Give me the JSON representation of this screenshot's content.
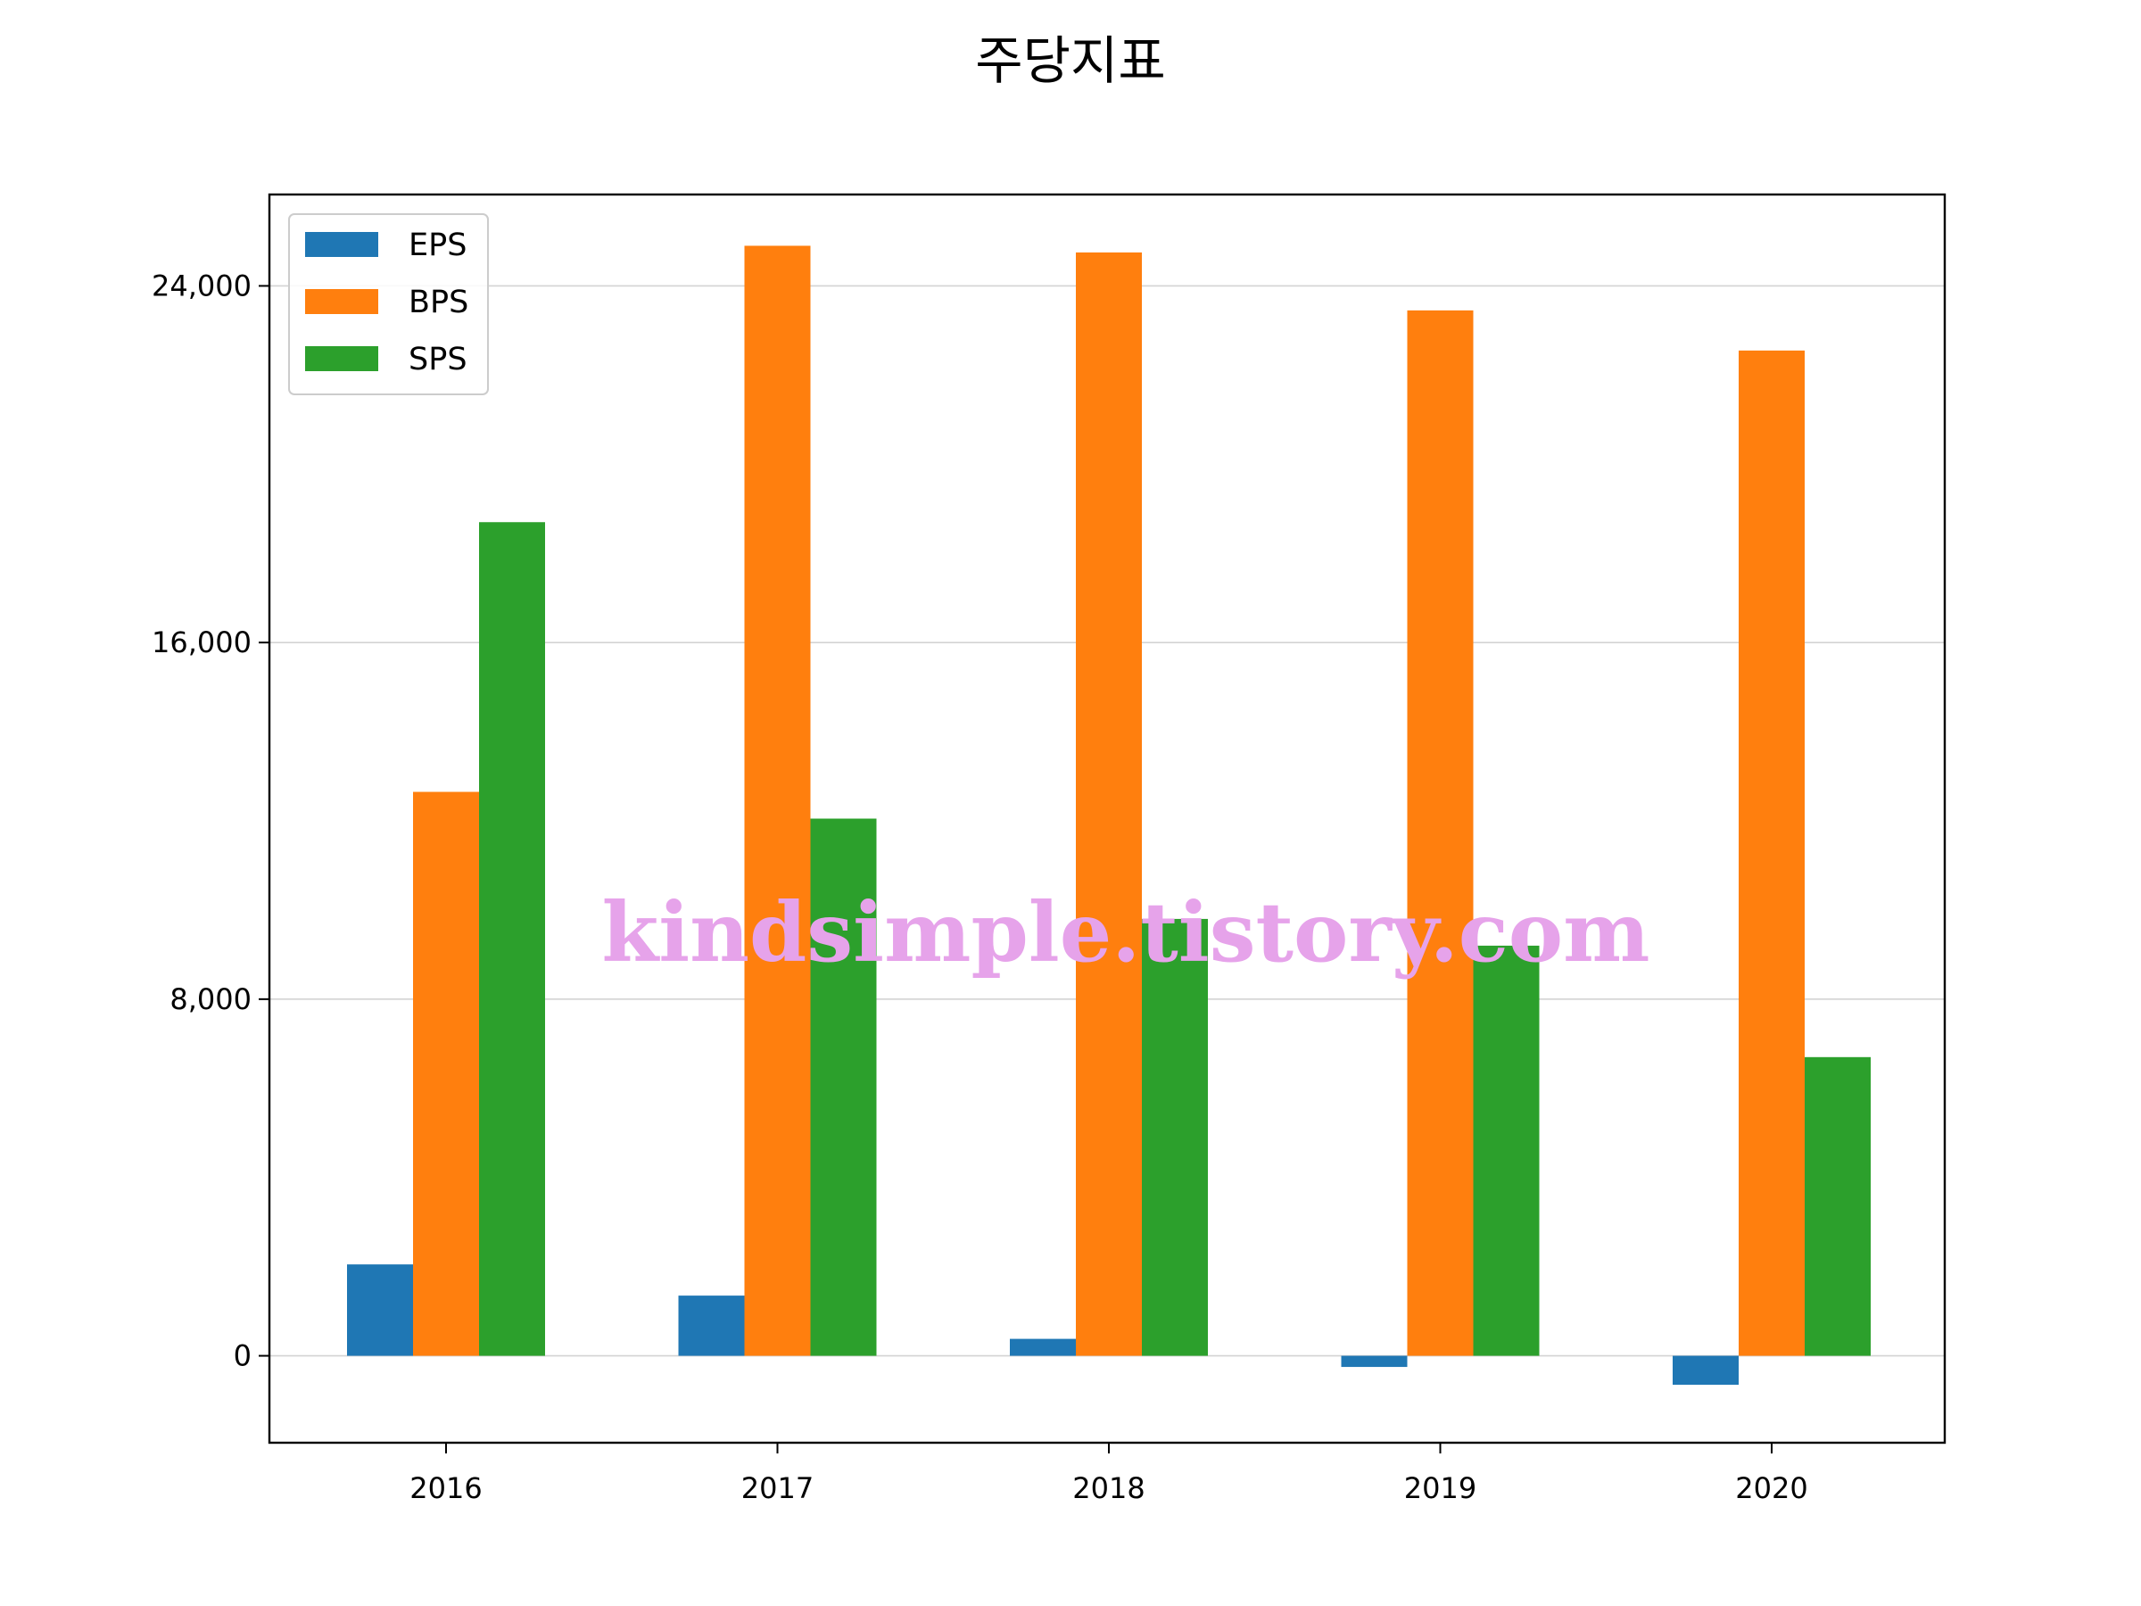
{
  "chart_data": {
    "type": "bar",
    "title": "주당지표",
    "xlabel": "",
    "ylabel": "",
    "categories": [
      "2016",
      "2017",
      "2018",
      "2019",
      "2020"
    ],
    "series": [
      {
        "name": "EPS",
        "color": "#1f77b4",
        "values": [
          2050,
          1350,
          380,
          -250,
          -650
        ]
      },
      {
        "name": "BPS",
        "color": "#ff7f0e",
        "values": [
          12650,
          24900,
          24750,
          23450,
          22550
        ]
      },
      {
        "name": "SPS",
        "color": "#2ca02c",
        "values": [
          18700,
          12050,
          9800,
          9200,
          6700
        ]
      }
    ],
    "yticks": [
      0,
      8000,
      16000,
      24000
    ],
    "ytick_labels": [
      "0",
      "8,000",
      "16,000",
      "24,000"
    ],
    "ylim": [
      -1950,
      26050
    ],
    "grid": "horizontal",
    "legend_position": "top-left"
  },
  "watermark": "kindsimple.tistory.com"
}
